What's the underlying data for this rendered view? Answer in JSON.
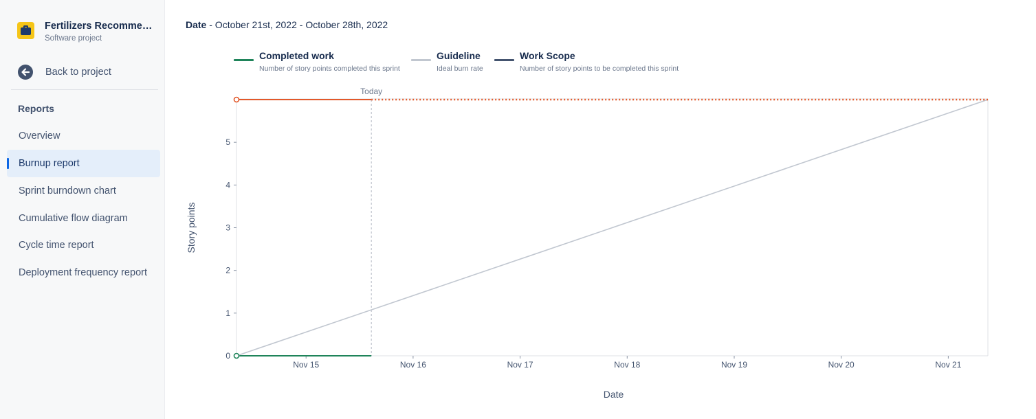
{
  "project": {
    "name": "Fertilizers Recommend...",
    "type": "Software project",
    "avatar_icon": "briefcase-icon",
    "avatar_color": "#f5c518"
  },
  "sidebar": {
    "back_label": "Back to project",
    "back_icon": "arrow-left-circle-icon",
    "reports_heading": "Reports",
    "items": [
      {
        "label": "Overview",
        "active": false
      },
      {
        "label": "Burnup report",
        "active": true
      },
      {
        "label": "Sprint burndown chart",
        "active": false
      },
      {
        "label": "Cumulative flow diagram",
        "active": false
      },
      {
        "label": "Cycle time report",
        "active": false
      },
      {
        "label": "Deployment frequency report",
        "active": false
      }
    ]
  },
  "report": {
    "date_label": "Date",
    "date_range": " - October 21st, 2022 - October 28th, 2022"
  },
  "legend": [
    {
      "title": "Completed work",
      "description": "Number of story points completed this sprint",
      "color": "#1f845a"
    },
    {
      "title": "Guideline",
      "description": "Ideal burn rate",
      "color": "#c1c7d0"
    },
    {
      "title": "Work Scope",
      "description": "Number of story points to be completed this sprint",
      "color": "#44546f"
    }
  ],
  "chart_data": {
    "type": "line",
    "xlabel": "Date",
    "ylabel": "Story points",
    "ylim": [
      0,
      6
    ],
    "yticks": [
      0,
      1,
      2,
      3,
      4,
      5
    ],
    "x_ticks": [
      "Nov 15",
      "Nov 16",
      "Nov 17",
      "Nov 18",
      "Nov 19",
      "Nov 20",
      "Nov 21"
    ],
    "x_range": [
      14.35,
      21.37
    ],
    "today": {
      "label": "Today",
      "x": 15.61
    },
    "grid": false,
    "series": [
      {
        "name": "Completed work",
        "color": "#1f845a",
        "style": "solid",
        "points": [
          [
            14.35,
            0
          ],
          [
            15.61,
            0
          ]
        ]
      },
      {
        "name": "Guideline",
        "color": "#c1c7d0",
        "style": "solid",
        "points": [
          [
            14.35,
            0
          ],
          [
            21.37,
            6
          ]
        ]
      },
      {
        "name": "Work Scope",
        "color": "#e2592b",
        "style": "solid",
        "points": [
          [
            14.35,
            6
          ],
          [
            15.61,
            6
          ]
        ]
      },
      {
        "name": "Work Scope",
        "color": "#e2592b",
        "style": "dotted",
        "points": [
          [
            15.61,
            6
          ],
          [
            21.37,
            6
          ]
        ]
      }
    ]
  }
}
